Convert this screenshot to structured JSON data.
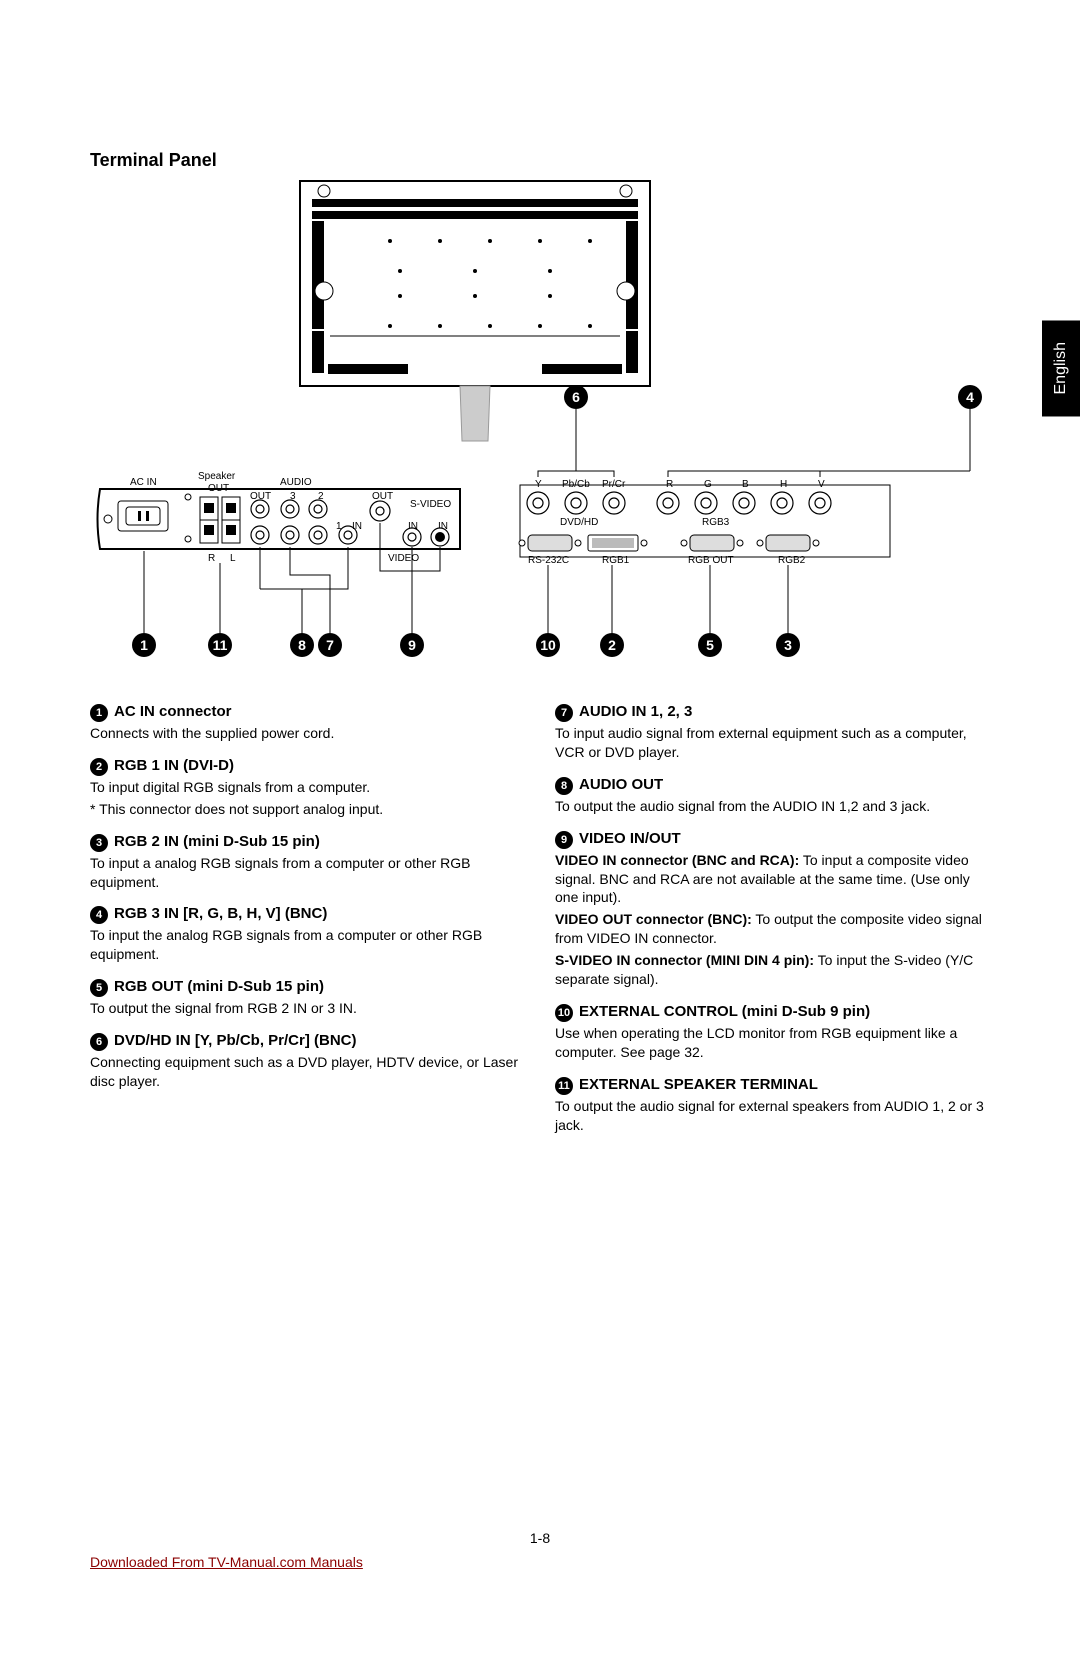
{
  "lang_tab": "English",
  "page_title": "Terminal Panel",
  "page_number": "1-8",
  "footer_link": "Downloaded From TV-Manual.com Manuals",
  "diagram": {
    "labels": {
      "ac_in": "AC IN",
      "speaker_out": "Speaker",
      "out": "OUT",
      "audio": "AUDIO",
      "svideo": "S-VIDEO",
      "video": "VIDEO",
      "in": "IN",
      "r": "R",
      "l": "L",
      "one": "1",
      "two": "2",
      "three": "3",
      "y": "Y",
      "pbcb": "Pb/Cb",
      "prcr": "Pr/Cr",
      "rcap": "R",
      "g": "G",
      "b": "B",
      "h": "H",
      "v": "V",
      "dvdhd": "DVD/HD",
      "rgb3": "RGB3",
      "rs232c": "RS-232C",
      "rgb1": "RGB1",
      "rgbout": "RGB OUT",
      "rgb2": "RGB2"
    },
    "callouts": [
      "1",
      "2",
      "3",
      "4",
      "5",
      "6",
      "7",
      "8",
      "9",
      "10",
      "11"
    ]
  },
  "left_items": [
    {
      "num": "1",
      "title": "AC IN connector",
      "body": [
        {
          "text": "Connects with the supplied power cord."
        }
      ]
    },
    {
      "num": "2",
      "title": "RGB 1 IN (DVI-D)",
      "body": [
        {
          "text": "To input digital RGB signals from a computer."
        },
        {
          "text": "* This connector does not support analog input."
        }
      ]
    },
    {
      "num": "3",
      "title": "RGB 2 IN (mini D-Sub 15 pin)",
      "body": [
        {
          "text": "To input a analog RGB signals from a computer or other RGB equipment."
        }
      ]
    },
    {
      "num": "4",
      "title": "RGB 3 IN [R, G, B, H, V] (BNC)",
      "body": [
        {
          "text": "To input the analog RGB signals from a computer or other RGB equipment."
        }
      ]
    },
    {
      "num": "5",
      "title": "RGB OUT (mini D-Sub 15 pin)",
      "body": [
        {
          "text": "To output the signal from RGB 2 IN or 3 IN."
        }
      ]
    },
    {
      "num": "6",
      "title": "DVD/HD IN [Y, Pb/Cb, Pr/Cr] (BNC)",
      "body": [
        {
          "text": "Connecting equipment such as a DVD player, HDTV device, or Laser disc player."
        }
      ]
    }
  ],
  "right_items": [
    {
      "num": "7",
      "title": "AUDIO IN 1, 2, 3",
      "body": [
        {
          "text": "To input audio signal from external equipment such as a computer, VCR or DVD player."
        }
      ]
    },
    {
      "num": "8",
      "title": "AUDIO OUT",
      "body": [
        {
          "text": "To output the audio signal from the AUDIO IN 1,2 and 3 jack."
        }
      ]
    },
    {
      "num": "9",
      "title": "VIDEO IN/OUT",
      "body": [
        {
          "strong": "VIDEO IN connector (BNC and RCA):",
          "text": " To input a composite video signal.  BNC and RCA are not available at the same time. (Use only one input)."
        },
        {
          "strong": "VIDEO OUT connector (BNC):",
          "text": " To output the composite video signal from VIDEO IN connector."
        },
        {
          "strong": "S-VIDEO IN connector (MINI DIN 4 pin):",
          "text": " To input the S-video (Y/C separate signal)."
        }
      ]
    },
    {
      "num": "10",
      "title": "EXTERNAL CONTROL (mini D-Sub 9 pin)",
      "body": [
        {
          "text": "Use when operating the LCD monitor from RGB equipment like a computer. See page 32."
        }
      ]
    },
    {
      "num": "11",
      "title": "EXTERNAL SPEAKER TERMINAL",
      "body": [
        {
          "text": "To output the audio signal for external speakers from  AUDIO 1, 2 or 3 jack."
        }
      ]
    }
  ]
}
